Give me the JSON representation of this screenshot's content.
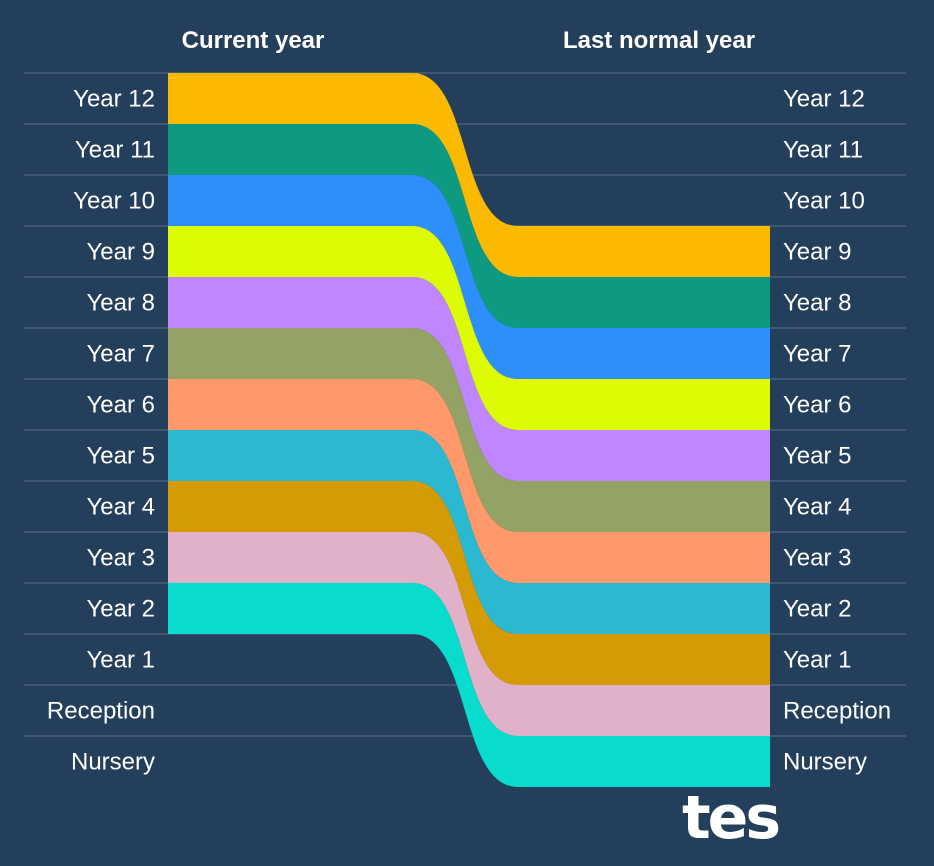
{
  "chart_data": {
    "type": "sankey",
    "left_header": "Current year",
    "right_header": "Last normal year",
    "rows": [
      "Year 12",
      "Year 11",
      "Year 10",
      "Year 9",
      "Year 8",
      "Year 7",
      "Year 6",
      "Year 5",
      "Year 4",
      "Year 3",
      "Year 2",
      "Year 1",
      "Reception",
      "Nursery"
    ],
    "flows": [
      {
        "from": "Year 12",
        "to": "Year 9",
        "color": "#fbb900"
      },
      {
        "from": "Year 11",
        "to": "Year 8",
        "color": "#0d9a80"
      },
      {
        "from": "Year 10",
        "to": "Year 7",
        "color": "#2d8ffa"
      },
      {
        "from": "Year 9",
        "to": "Year 6",
        "color": "#ddfb05"
      },
      {
        "from": "Year 8",
        "to": "Year 5",
        "color": "#c086ff"
      },
      {
        "from": "Year 7",
        "to": "Year 4",
        "color": "#93a365"
      },
      {
        "from": "Year 6",
        "to": "Year 3",
        "color": "#ff996c"
      },
      {
        "from": "Year 5",
        "to": "Year 2",
        "color": "#2bb9d1"
      },
      {
        "from": "Year 4",
        "to": "Year 1",
        "color": "#d49b05"
      },
      {
        "from": "Year 3",
        "to": "Reception",
        "color": "#e1b1c9"
      },
      {
        "from": "Year 2",
        "to": "Nursery",
        "color": "#07dccd"
      }
    ]
  },
  "logo_text": "tes",
  "colors": {
    "background": "#243f5b",
    "gridline": "#5a7087",
    "text": "#ffffff"
  }
}
